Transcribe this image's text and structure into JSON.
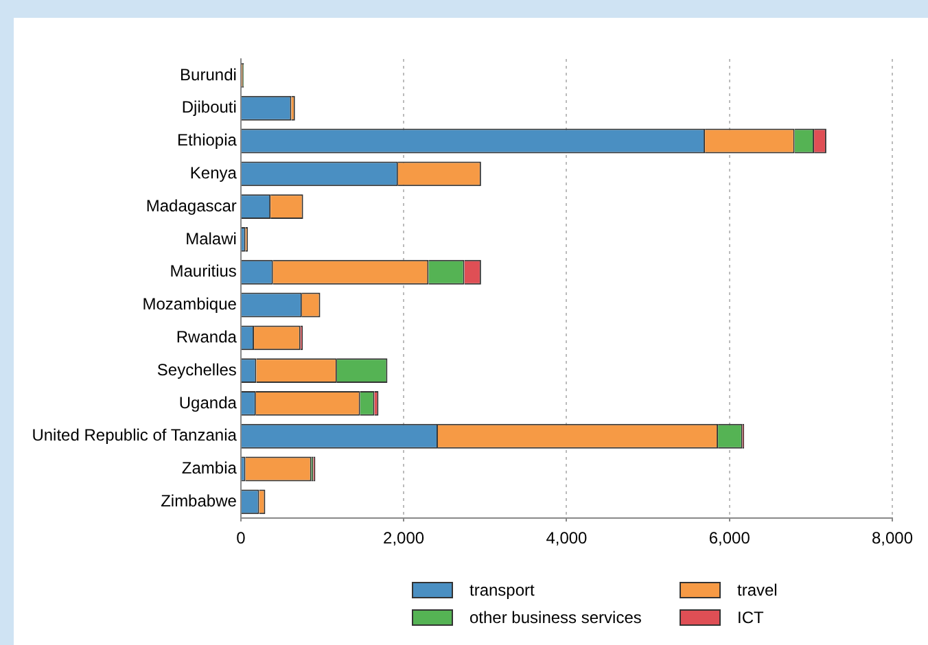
{
  "chart_data": {
    "type": "bar",
    "orientation": "horizontal",
    "stacked": true,
    "categories": [
      "Burundi",
      "Djibouti",
      "Ethiopia",
      "Kenya",
      "Madagascar",
      "Malawi",
      "Mauritius",
      "Mozambique",
      "Rwanda",
      "Seychelles",
      "Uganda",
      "United Republic of Tanzania",
      "Zambia",
      "Zimbabwe"
    ],
    "series": [
      {
        "name": "transport",
        "color": "#4a8fc2",
        "values": [
          10,
          620,
          5700,
          1930,
          365,
          57,
          395,
          750,
          162,
          190,
          185,
          2420,
          57,
          225
        ]
      },
      {
        "name": "travel",
        "color": "#f69a45",
        "values": [
          15,
          45,
          1100,
          1020,
          400,
          30,
          1910,
          225,
          570,
          990,
          1280,
          3440,
          810,
          75
        ]
      },
      {
        "name": "other business services",
        "color": "#55b354",
        "values": [
          10,
          null,
          240,
          null,
          null,
          null,
          440,
          null,
          null,
          620,
          175,
          300,
          23,
          null
        ]
      },
      {
        "name": "ICT",
        "color": "#df4f55",
        "values": [
          null,
          null,
          150,
          null,
          null,
          null,
          205,
          null,
          30,
          null,
          50,
          20,
          25,
          null
        ]
      }
    ],
    "xlim": [
      0,
      8000
    ],
    "xticks": [
      0,
      {
        "value": 2000,
        "label": "2,000"
      },
      {
        "value": 4000,
        "label": "4,000"
      },
      {
        "value": 6000,
        "label": "6,000"
      },
      {
        "value": 8000,
        "label": "8,000"
      }
    ],
    "grid": "x",
    "legend": "bottom"
  }
}
